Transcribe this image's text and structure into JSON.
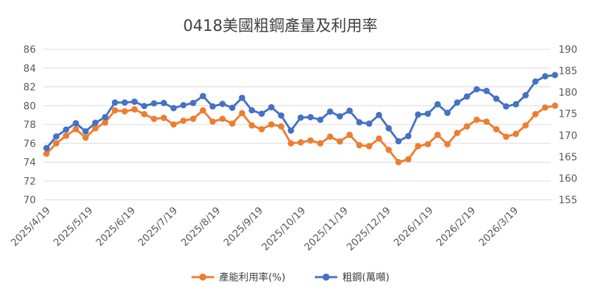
{
  "chart_data": {
    "type": "line",
    "title": "0418美國粗鋼產量及利用率",
    "x": [
      "2025/4/19",
      "2025/4/26",
      "2025/5/3",
      "2025/5/10",
      "2025/5/17",
      "2025/5/24",
      "2025/5/31",
      "2025/6/7",
      "2025/6/14",
      "2025/6/21",
      "2025/6/28",
      "2025/7/5",
      "2025/7/12",
      "2025/7/19",
      "2025/7/26",
      "2025/8/2",
      "2025/8/9",
      "2025/8/16",
      "2025/8/23",
      "2025/8/30",
      "2025/9/6",
      "2025/9/13",
      "2025/9/20",
      "2025/9/27",
      "2025/10/4",
      "2025/10/11",
      "2025/10/18",
      "2025/10/25",
      "2025/11/1",
      "2025/11/8",
      "2025/11/15",
      "2025/11/22",
      "2025/11/29",
      "2025/12/6",
      "2025/12/13",
      "2025/12/20",
      "2025/12/27",
      "2026/1/3",
      "2026/1/10",
      "2026/1/17",
      "2026/1/24",
      "2026/1/31",
      "2026/2/7",
      "2026/2/14",
      "2026/2/21",
      "2026/2/28",
      "2026/3/7",
      "2026/3/14",
      "2026/3/21",
      "2026/3/28",
      "2026/4/4",
      "2026/4/11",
      "2026/4/18"
    ],
    "xtick_labels": [
      "2025/4/19",
      "2025/5/19",
      "2025/6/19",
      "2025/7/19",
      "2025/8/19",
      "2025/9/19",
      "2025/10/19",
      "2025/11/19",
      "2025/12/19",
      "2026/1/19",
      "2026/2/19",
      "2026/3/19"
    ],
    "y_left": {
      "min": 70,
      "max": 86,
      "step": 2,
      "ticks": [
        "70",
        "72",
        "74",
        "76",
        "78",
        "80",
        "82",
        "84",
        "86"
      ]
    },
    "y_right": {
      "min": 155,
      "max": 190,
      "step": 5,
      "ticks": [
        "155",
        "160",
        "165",
        "170",
        "175",
        "180",
        "185",
        "190"
      ]
    },
    "series": [
      {
        "name": "產能利用率(%)",
        "axis": "left",
        "color": "#ED7D31",
        "values": [
          74.9,
          76.0,
          76.8,
          77.5,
          76.6,
          77.6,
          78.2,
          79.5,
          79.4,
          79.6,
          79.1,
          78.6,
          78.7,
          78.0,
          78.4,
          78.6,
          79.5,
          78.3,
          78.6,
          78.1,
          79.2,
          77.9,
          77.5,
          78.0,
          77.8,
          76.0,
          76.1,
          76.3,
          76.0,
          76.7,
          76.2,
          76.9,
          75.8,
          75.7,
          76.5,
          75.3,
          74.0,
          74.3,
          75.7,
          75.9,
          76.9,
          75.9,
          77.1,
          77.8,
          78.5,
          78.3,
          77.5,
          76.7,
          77.0,
          77.9,
          79.1,
          79.8,
          80.0
        ]
      },
      {
        "name": "粗鋼(萬噸)",
        "axis": "right",
        "color": "#4472C4",
        "values": [
          167.0,
          169.7,
          171.3,
          172.8,
          170.9,
          172.9,
          174.2,
          177.6,
          177.6,
          177.8,
          176.8,
          177.4,
          177.5,
          176.3,
          177.0,
          177.5,
          179.1,
          176.7,
          177.3,
          176.4,
          178.7,
          175.8,
          175.0,
          176.5,
          174.6,
          171.1,
          174.1,
          174.2,
          173.6,
          175.5,
          174.4,
          175.7,
          173.0,
          172.7,
          174.7,
          171.6,
          168.6,
          169.8,
          174.8,
          175.0,
          177.2,
          175.2,
          177.6,
          179.0,
          180.7,
          180.3,
          178.5,
          176.7,
          177.2,
          179.3,
          182.5,
          183.7,
          184.0
        ]
      }
    ],
    "legend_position": "bottom"
  }
}
